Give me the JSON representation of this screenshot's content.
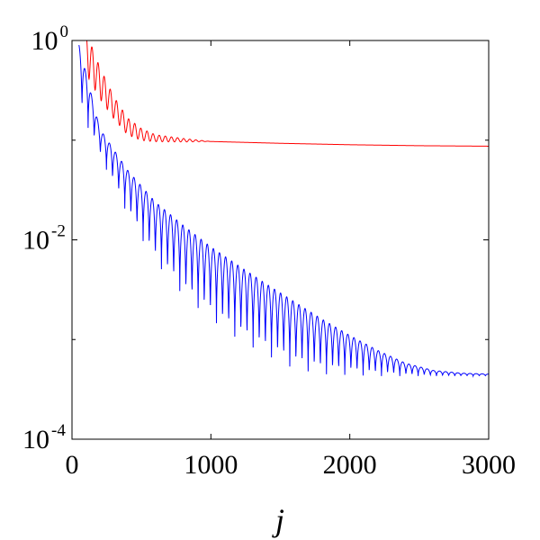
{
  "chart_data": {
    "type": "line",
    "title": "",
    "xlabel": "j",
    "ylabel": "",
    "xlim": [
      0,
      3000
    ],
    "ylim": [
      0.0001,
      1
    ],
    "yscale": "log",
    "grid": false,
    "legend": "none",
    "x_ticks": [
      {
        "value": 0,
        "label": "0"
      },
      {
        "value": 1000,
        "label": "1000"
      },
      {
        "value": 2000,
        "label": "2000"
      },
      {
        "value": 3000,
        "label": "3000"
      }
    ],
    "y_ticks": [
      {
        "value": 1,
        "base": "10",
        "exp": "0"
      },
      {
        "value": 0.01,
        "base": "10",
        "exp": "-2"
      },
      {
        "value": 0.0001,
        "base": "10",
        "exp": "-4"
      }
    ],
    "series": [
      {
        "color": "#ff0000",
        "x": [
          100,
          200,
          300,
          400,
          500,
          600,
          800,
          1000,
          1500,
          2000,
          2500,
          3000
        ],
        "y": [
          0.85,
          0.4,
          0.22,
          0.14,
          0.115,
          0.105,
          0.1,
          0.097,
          0.093,
          0.09,
          0.088,
          0.087
        ],
        "oscillation": {
          "period": 44,
          "amplitude": [
            0.45,
            0.25,
            0.08,
            0.02,
            0.0
          ],
          "amplitude_x": [
            100,
            300,
            600,
            900,
            1000
          ]
        }
      },
      {
        "color": "#0000ff",
        "x": [
          50,
          200,
          400,
          600,
          800,
          1000,
          1200,
          1400,
          1600,
          1800,
          2000,
          2200,
          2400,
          2600,
          2800,
          3000
        ],
        "y": [
          0.9,
          0.13,
          0.05,
          0.024,
          0.014,
          0.0085,
          0.0055,
          0.0036,
          0.0024,
          0.0016,
          0.0011,
          0.00078,
          0.00058,
          0.00049,
          0.00046,
          0.00045
        ],
        "dip_floor": [
          0.22,
          0.07,
          0.018,
          0.006,
          0.0028,
          0.0016,
          0.001,
          0.0007,
          0.00051,
          0.00045,
          0.00044,
          0.00043,
          0.00043,
          0.00043,
          0.00043,
          0.00043
        ],
        "oscillation": {
          "period": 44
        }
      }
    ]
  }
}
